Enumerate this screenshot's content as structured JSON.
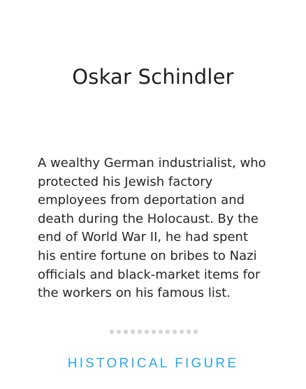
{
  "card": {
    "title": "Oskar Schindler",
    "description_lines": [
      "A wealthy German industrialist, who",
      "protected his Jewish factory",
      "employees from deportation and",
      "death during the Holocaust. By the",
      "end of World War II, he had spent",
      "his entire fortune on bribes to Nazi",
      "officials and black-market items for",
      "the workers on his famous list."
    ],
    "category": "HISTORICAL FIGURE"
  },
  "pagination": {
    "dot_count": 13,
    "dot_color": "#d4d4d4"
  },
  "colors": {
    "accent": "#2aa7e0",
    "text": "#262626",
    "background": "#ffffff"
  }
}
